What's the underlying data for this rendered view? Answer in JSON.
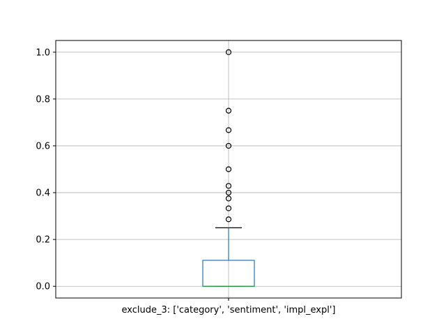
{
  "chart_data": {
    "type": "box",
    "title": "",
    "xlabel": "",
    "ylabel": "",
    "categories": [
      "exclude_3: ['category', 'sentiment', 'impl_expl']"
    ],
    "ylim": [
      -0.05,
      1.05
    ],
    "yticks": [
      0.0,
      0.2,
      0.4,
      0.6,
      0.8,
      1.0
    ],
    "ytick_labels": [
      "0.0",
      "0.2",
      "0.4",
      "0.6",
      "0.8",
      "1.0"
    ],
    "grid": true,
    "box": {
      "whisker_low": 0.0,
      "q1": 0.0,
      "median": 0.0,
      "q3": 0.111,
      "whisker_high": 0.25,
      "outliers": [
        0.286,
        0.333,
        0.375,
        0.4,
        0.429,
        0.5,
        0.6,
        0.667,
        0.75,
        1.0
      ]
    },
    "colors": {
      "box": "#1f77b4",
      "median": "#2ca02c",
      "whisker_cap": "#000000",
      "grid": "#b0b0b0"
    }
  }
}
